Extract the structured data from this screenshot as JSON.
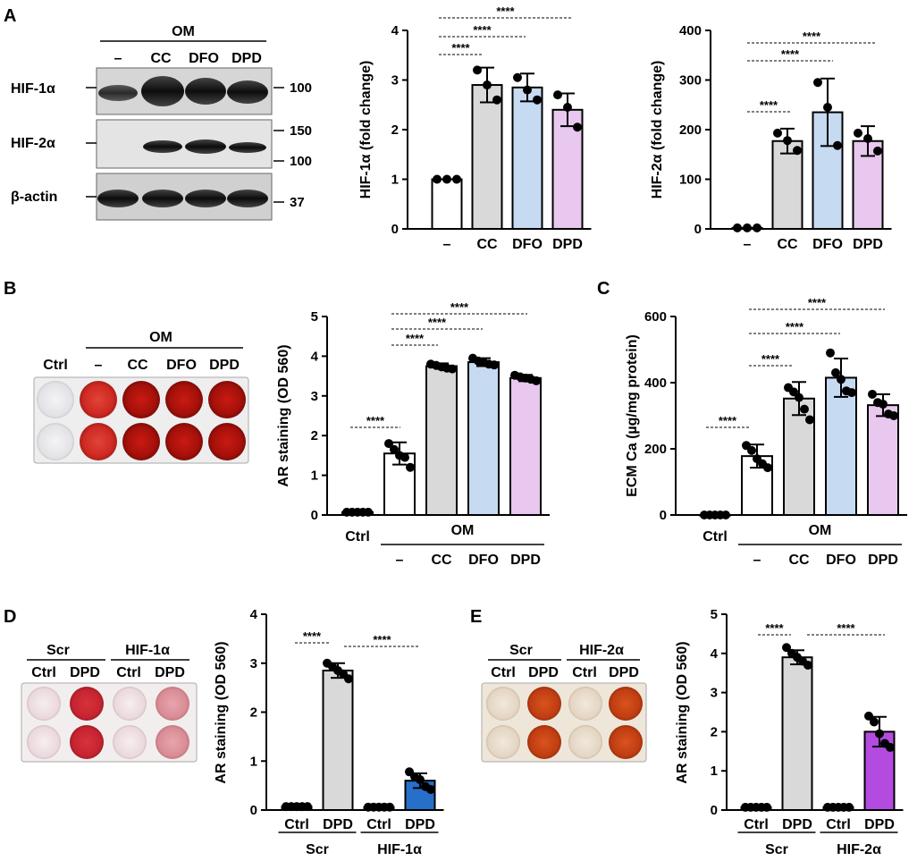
{
  "panels": {
    "a": "A",
    "b": "B",
    "c": "C",
    "d": "D",
    "e": "E"
  },
  "western": {
    "group_label": "OM",
    "lanes": [
      "–",
      "CC",
      "DFO",
      "DPD"
    ],
    "rows": [
      {
        "label": "HIF-1α",
        "markers": [
          "100"
        ]
      },
      {
        "label": "HIF-2α",
        "markers": [
          "150",
          "100"
        ]
      },
      {
        "label": "β-actin",
        "markers": [
          "37"
        ]
      }
    ]
  },
  "plate_b": {
    "group_label": "OM",
    "lanes": [
      "Ctrl",
      "–",
      "CC",
      "DFO",
      "DPD"
    ]
  },
  "plate_d": {
    "groups": [
      "Scr",
      "HIF-1α"
    ],
    "lanes": [
      "Ctrl",
      "DPD",
      "Ctrl",
      "DPD"
    ]
  },
  "plate_e": {
    "groups": [
      "Scr",
      "HIF-2α"
    ],
    "lanes": [
      "Ctrl",
      "DPD",
      "Ctrl",
      "DPD"
    ]
  },
  "colors": {
    "white": "#ffffff",
    "gray": "#d9d9d9",
    "blue": "#c6daf2",
    "pink": "#e8c8ee",
    "blue_dark": "#2770c9",
    "purple_dark": "#b44be0"
  },
  "chart_data": [
    {
      "id": "a1",
      "type": "bar",
      "ylabel": "HIF-1α (fold change)",
      "ylim": [
        0,
        4
      ],
      "yticks": [
        "0",
        "1",
        "2",
        "3",
        "4"
      ],
      "categories": [
        "–",
        "CC",
        "DFO",
        "DPD"
      ],
      "values": [
        1.0,
        2.9,
        2.85,
        2.4
      ],
      "errors": [
        0.0,
        0.35,
        0.28,
        0.33
      ],
      "points": [
        [
          1.0,
          1.0,
          1.0
        ],
        [
          3.2,
          2.9,
          2.6
        ],
        [
          3.05,
          2.8,
          2.6
        ],
        [
          2.7,
          2.45,
          2.05
        ]
      ],
      "colors": [
        "#ffffff",
        "#d9d9d9",
        "#c6daf2",
        "#e8c8ee"
      ],
      "significance": [
        {
          "from": 0,
          "to": 1,
          "label": "****"
        },
        {
          "from": 0,
          "to": 2,
          "label": "****"
        },
        {
          "from": 0,
          "to": 3,
          "label": "****"
        }
      ],
      "groups": []
    },
    {
      "id": "a2",
      "type": "bar",
      "ylabel": "HIF-2α (fold change)",
      "ylim": [
        0,
        400
      ],
      "yticks": [
        "0",
        "100",
        "200",
        "300",
        "400"
      ],
      "categories": [
        "–",
        "CC",
        "DFO",
        "DPD"
      ],
      "values": [
        2,
        177,
        235,
        177
      ],
      "errors": [
        0,
        25,
        68,
        30
      ],
      "points": [
        [
          2,
          2,
          2
        ],
        [
          193,
          178,
          158
        ],
        [
          295,
          245,
          168
        ],
        [
          193,
          182,
          157
        ]
      ],
      "colors": [
        "#ffffff",
        "#d9d9d9",
        "#c6daf2",
        "#e8c8ee"
      ],
      "significance": [
        {
          "from": 0,
          "to": 1,
          "label": "****"
        },
        {
          "from": 0,
          "to": 2,
          "label": "****"
        },
        {
          "from": 0,
          "to": 3,
          "label": "****"
        }
      ],
      "groups": []
    },
    {
      "id": "b",
      "type": "bar",
      "ylabel": "AR staining (OD 560)",
      "ylim": [
        0,
        5
      ],
      "yticks": [
        "0",
        "1",
        "2",
        "3",
        "4",
        "5"
      ],
      "categories": [
        "Ctrl",
        "–",
        "CC",
        "DFO",
        "DPD"
      ],
      "values": [
        0.07,
        1.55,
        3.75,
        3.85,
        3.45
      ],
      "errors": [
        0.02,
        0.28,
        0.07,
        0.1,
        0.08
      ],
      "points": [
        [
          0.07,
          0.07,
          0.07,
          0.07,
          0.07
        ],
        [
          1.8,
          1.65,
          1.5,
          1.45,
          1.2
        ],
        [
          3.8,
          3.77,
          3.73,
          3.7,
          3.68
        ],
        [
          3.95,
          3.88,
          3.85,
          3.8,
          3.78
        ],
        [
          3.52,
          3.48,
          3.45,
          3.42,
          3.38
        ]
      ],
      "colors": [
        "#ffffff",
        "#ffffff",
        "#d9d9d9",
        "#c6daf2",
        "#e8c8ee"
      ],
      "significance": [
        {
          "from": 0,
          "to": 1,
          "label": "****"
        },
        {
          "from": 1,
          "to": 2,
          "label": "****"
        },
        {
          "from": 1,
          "to": 3,
          "label": "****"
        },
        {
          "from": 1,
          "to": 4,
          "label": "****"
        }
      ],
      "groups": [
        {
          "label": "OM",
          "from": 1,
          "to": 4
        }
      ]
    },
    {
      "id": "c",
      "type": "bar",
      "ylabel": "ECM Ca (µg/mg protein)",
      "ylim": [
        0,
        600
      ],
      "yticks": [
        "0",
        "200",
        "400",
        "600"
      ],
      "categories": [
        "Ctrl",
        "–",
        "CC",
        "DFO",
        "DPD"
      ],
      "values": [
        0,
        178,
        352,
        415,
        332
      ],
      "errors": [
        0,
        35,
        50,
        58,
        33
      ],
      "points": [
        [
          0,
          0,
          0,
          0,
          0
        ],
        [
          210,
          195,
          170,
          155,
          143
        ],
        [
          385,
          372,
          355,
          320,
          288
        ],
        [
          490,
          430,
          410,
          375,
          370
        ],
        [
          365,
          340,
          335,
          305,
          300
        ]
      ],
      "colors": [
        "#ffffff",
        "#ffffff",
        "#d9d9d9",
        "#c6daf2",
        "#e8c8ee"
      ],
      "significance": [
        {
          "from": 0,
          "to": 1,
          "label": "****"
        },
        {
          "from": 1,
          "to": 2,
          "label": "****"
        },
        {
          "from": 1,
          "to": 3,
          "label": "****"
        },
        {
          "from": 1,
          "to": 4,
          "label": "****"
        }
      ],
      "groups": [
        {
          "label": "OM",
          "from": 1,
          "to": 4
        }
      ]
    },
    {
      "id": "d",
      "type": "bar",
      "ylabel": "AR staining (OD 560)",
      "ylim": [
        0,
        4
      ],
      "yticks": [
        "0",
        "1",
        "2",
        "3",
        "4"
      ],
      "categories": [
        "Ctrl",
        "DPD",
        "Ctrl",
        "DPD"
      ],
      "values": [
        0.07,
        2.85,
        0.06,
        0.6
      ],
      "errors": [
        0.02,
        0.15,
        0.02,
        0.15
      ],
      "points": [
        [
          0.07,
          0.07,
          0.07,
          0.07,
          0.07
        ],
        [
          3.0,
          2.93,
          2.85,
          2.78,
          2.68
        ],
        [
          0.06,
          0.06,
          0.06,
          0.06,
          0.06
        ],
        [
          0.78,
          0.68,
          0.62,
          0.48,
          0.42
        ]
      ],
      "colors": [
        "#ffffff",
        "#d9d9d9",
        "#ffffff",
        "#2770c9"
      ],
      "significance": [
        {
          "from": 0,
          "to": 1,
          "label": "****"
        },
        {
          "from": 1,
          "to": 3,
          "label": "****"
        }
      ],
      "groups": [
        {
          "label": "Scr",
          "from": 0,
          "to": 1
        },
        {
          "label": "HIF-1α",
          "from": 2,
          "to": 3
        }
      ]
    },
    {
      "id": "e",
      "type": "bar",
      "ylabel": "AR staining (OD 560)",
      "ylim": [
        0,
        5
      ],
      "yticks": [
        "0",
        "1",
        "2",
        "3",
        "4",
        "5"
      ],
      "categories": [
        "Ctrl",
        "DPD",
        "Ctrl",
        "DPD"
      ],
      "values": [
        0.07,
        3.9,
        0.07,
        2.0
      ],
      "errors": [
        0.02,
        0.18,
        0.02,
        0.38
      ],
      "points": [
        [
          0.07,
          0.07,
          0.07,
          0.07,
          0.07
        ],
        [
          4.15,
          4.0,
          3.9,
          3.8,
          3.7
        ],
        [
          0.07,
          0.07,
          0.07,
          0.07,
          0.07
        ],
        [
          2.4,
          2.25,
          1.95,
          1.7,
          1.6
        ]
      ],
      "colors": [
        "#ffffff",
        "#d9d9d9",
        "#ffffff",
        "#b44be0"
      ],
      "significance": [
        {
          "from": 0,
          "to": 1,
          "label": "****"
        },
        {
          "from": 1,
          "to": 3,
          "label": "****"
        }
      ],
      "groups": [
        {
          "label": "Scr",
          "from": 0,
          "to": 1
        },
        {
          "label": "HIF-2α",
          "from": 2,
          "to": 3
        }
      ]
    }
  ]
}
